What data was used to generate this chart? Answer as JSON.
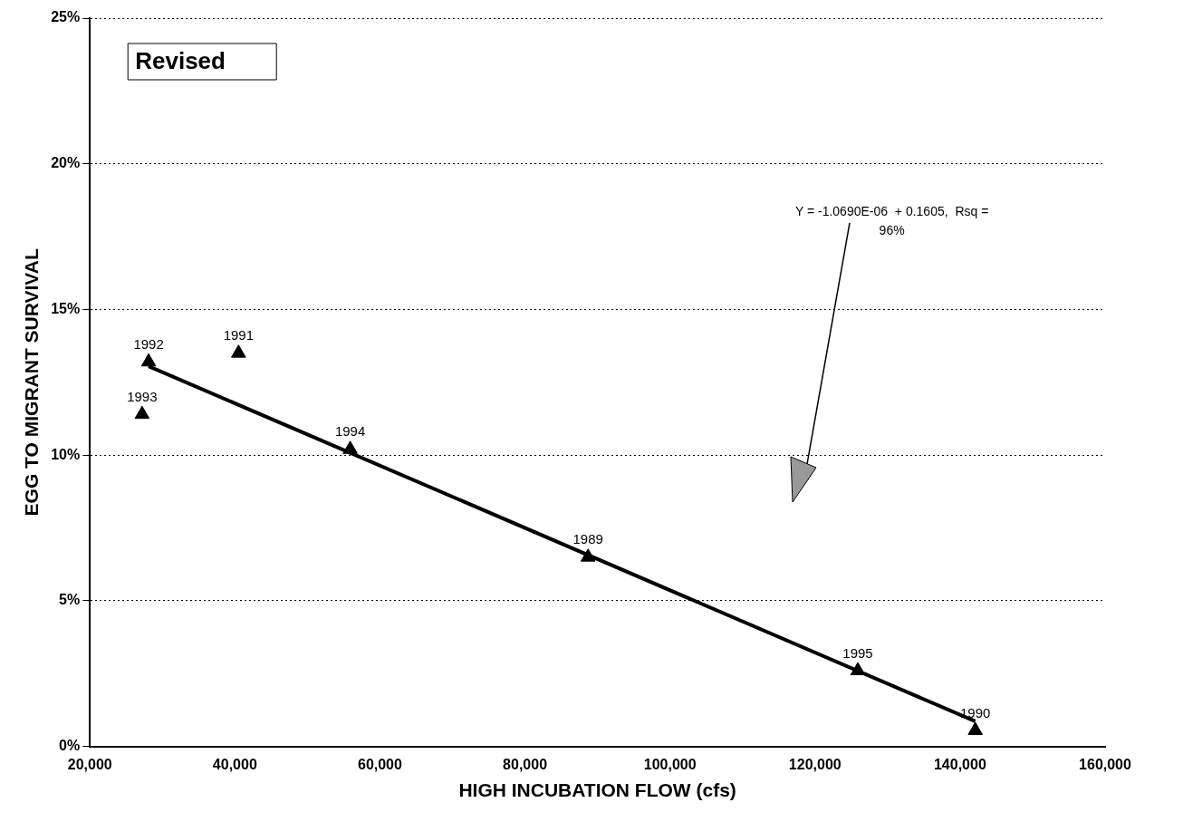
{
  "chart_data": {
    "type": "scatter",
    "xlabel": "HIGH INCUBATION FLOW (cfs)",
    "ylabel": "EGG TO MIGRANT SURVIVAL",
    "annotations": [
      "Revised",
      "Y = -1.0690E-06  + 0.1605,  Rsq = 96%",
      {
        "text": "1992",
        "x": 28100,
        "y": 13.2
      },
      {
        "text": "1991",
        "x": 40500,
        "y": 13.5
      },
      {
        "text": "1993",
        "x": 27200,
        "y": 11.4
      },
      {
        "text": "1994",
        "x": 55900,
        "y": 10.2
      },
      {
        "text": "1989",
        "x": 88700,
        "y": 6.5
      },
      {
        "text": "1995",
        "x": 125900,
        "y": 2.6
      },
      {
        "text": "1990",
        "x": 142100,
        "y": 0.55
      }
    ],
    "series": [
      {
        "type": "scatter",
        "color": "#000000",
        "x": [
          28100,
          40500,
          27200,
          55900,
          88700,
          125900,
          142100
        ],
        "values": [
          13.2,
          13.5,
          11.4,
          10.2,
          6.5,
          2.6,
          0.55
        ],
        "marker": "triangle"
      },
      {
        "type": "line",
        "color": "#000000",
        "x": [
          28100,
          142100
        ],
        "values": [
          13.05,
          0.86
        ],
        "marker": "none",
        "line_style": "solid"
      }
    ],
    "xlim": [
      20000,
      160000
    ],
    "xticks": [
      {
        "value": 20000,
        "label": "20,000"
      },
      {
        "value": 40000,
        "label": "40,000"
      },
      {
        "value": 60000,
        "label": "60,000"
      },
      {
        "value": 80000,
        "label": "80,000"
      },
      {
        "value": 100000,
        "label": "100,000"
      },
      {
        "value": 120000,
        "label": "120,000"
      },
      {
        "value": 140000,
        "label": "140,000"
      },
      {
        "value": 160000,
        "label": "160,000"
      }
    ],
    "ylim": [
      0,
      25
    ],
    "yticks": [
      {
        "value": 0,
        "label": "0%"
      },
      {
        "value": 5,
        "label": "5%"
      },
      {
        "value": 10,
        "label": "10%"
      },
      {
        "value": 15,
        "label": "15%"
      },
      {
        "value": 20,
        "label": "20%"
      },
      {
        "value": 25,
        "label": "25%"
      }
    ],
    "grid": "y",
    "legend": false
  }
}
